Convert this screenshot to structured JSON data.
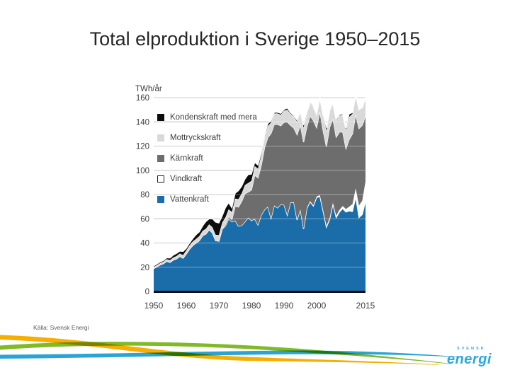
{
  "slide": {
    "title": "Total elproduktion i Sverige 1950–2015",
    "source": "Källa: Svensk Energi"
  },
  "chart_data": {
    "type": "area",
    "stacked": true,
    "title": "Total elproduktion i Sverige 1950–2015",
    "ylabel": "TWh/år",
    "xlabel": "",
    "grid": true,
    "legend_position": "upper-left-inside",
    "y_axis": {
      "min": 0,
      "max": 160,
      "ticks": [
        0,
        20,
        40,
        60,
        80,
        100,
        120,
        140,
        160
      ]
    },
    "x_axis": {
      "min": 1950,
      "max": 2015,
      "tick_labels": [
        1950,
        1960,
        1970,
        1980,
        1990,
        2000,
        2015
      ]
    },
    "colors": {
      "gridline": "#a8a8a8",
      "axis_line": "#0b0b14",
      "area_edge": "#ffffff",
      "tick_text": "#3e3e3d"
    },
    "years": [
      1950,
      1951,
      1952,
      1953,
      1954,
      1955,
      1956,
      1957,
      1958,
      1959,
      1960,
      1961,
      1962,
      1963,
      1964,
      1965,
      1966,
      1967,
      1968,
      1969,
      1970,
      1971,
      1972,
      1973,
      1974,
      1975,
      1976,
      1977,
      1978,
      1979,
      1980,
      1981,
      1982,
      1983,
      1984,
      1985,
      1986,
      1987,
      1988,
      1989,
      1990,
      1991,
      1992,
      1993,
      1994,
      1995,
      1996,
      1997,
      1998,
      1999,
      2000,
      2001,
      2002,
      2003,
      2004,
      2005,
      2006,
      2007,
      2008,
      2009,
      2010,
      2011,
      2012,
      2013,
      2014,
      2015
    ],
    "series": [
      {
        "id": "vattenkraft",
        "name": "Vattenkraft",
        "color": "#1a6da8",
        "outline": false,
        "values": [
          19,
          20.5,
          22,
          23,
          25,
          24,
          26,
          27,
          29,
          27.5,
          31,
          35,
          38,
          40,
          42,
          46,
          47.5,
          51,
          48.5,
          42,
          41.5,
          51.5,
          54,
          60,
          57.5,
          58.5,
          54,
          54.5,
          57.5,
          61,
          58.5,
          60,
          55,
          63,
          67.5,
          70,
          60.5,
          71,
          69,
          72,
          71.5,
          63,
          73.5,
          73.5,
          59,
          67.5,
          51.5,
          68.5,
          74,
          70.5,
          77.5,
          78.5,
          66,
          53,
          59.5,
          72,
          61,
          65.5,
          68.5,
          65.5,
          66.5,
          66,
          78,
          61,
          63.5,
          74.5
        ]
      },
      {
        "id": "vindkraft",
        "name": "Vindkraft",
        "color": "#ffffff",
        "outline": true,
        "values": [
          0,
          0,
          0,
          0,
          0,
          0,
          0,
          0,
          0,
          0,
          0,
          0,
          0,
          0,
          0,
          0,
          0,
          0,
          0,
          0,
          0,
          0,
          0,
          0,
          0,
          0,
          0,
          0,
          0,
          0,
          0,
          0,
          0,
          0,
          0,
          0,
          0,
          0,
          0,
          0,
          0,
          0.1,
          0.1,
          0.1,
          0.2,
          0.2,
          0.3,
          0.4,
          0.5,
          0.6,
          0.9,
          1,
          1,
          1.1,
          1.1,
          1.2,
          1.4,
          1.8,
          2,
          2.5,
          3.5,
          6.1,
          7.2,
          9.9,
          11.5,
          16.3
        ]
      },
      {
        "id": "karnkraft",
        "name": "Kärnkraft",
        "color": "#6d6d6d",
        "outline": false,
        "values": [
          0,
          0,
          0,
          0,
          0,
          0,
          0,
          0,
          0,
          0,
          0,
          0,
          0,
          0,
          0,
          0,
          0,
          0,
          0,
          0,
          0,
          0,
          1.5,
          2,
          2,
          11.9,
          15.7,
          19.9,
          23.3,
          21,
          25.3,
          36,
          38.8,
          41,
          50.9,
          57,
          69.9,
          66.9,
          68.9,
          64.8,
          68.2,
          76.8,
          63.5,
          61.4,
          70.2,
          69.9,
          71.4,
          67,
          70.5,
          70.1,
          56.8,
          69.2,
          65.6,
          65.5,
          75,
          69.5,
          65,
          64.3,
          61.3,
          50,
          55.6,
          58,
          61.2,
          63.6,
          62.2,
          54.3
        ]
      },
      {
        "id": "mottryckskraft",
        "name": "Mottryckskraft",
        "color": "#d9d9d9",
        "outline": false,
        "values": [
          1.2,
          1.3,
          1.4,
          1.5,
          1.6,
          1.8,
          2,
          2.2,
          2.3,
          2.5,
          2.8,
          3,
          3.2,
          3.4,
          3.7,
          4,
          4.2,
          4.4,
          4.6,
          4.8,
          5,
          5.2,
          5.5,
          5.8,
          6,
          6.2,
          6.5,
          6.5,
          7,
          7.5,
          7.5,
          7.5,
          7.5,
          8,
          8.5,
          9.5,
          9,
          9,
          9,
          9,
          9.5,
          10,
          9.5,
          9.5,
          10.5,
          10.5,
          12,
          10.5,
          11,
          10.5,
          10.5,
          11,
          12,
          13,
          13,
          12.5,
          13.5,
          13.5,
          14,
          15.5,
          18.5,
          16.5,
          15.5,
          15,
          14,
          14.5
        ]
      },
      {
        "id": "kondenskraft",
        "name": "Kondenskraft med mera",
        "color": "#0d0d0d",
        "outline": false,
        "values": [
          0.8,
          0.9,
          1,
          1,
          1.2,
          1.8,
          2,
          2.2,
          2,
          3,
          1.8,
          2,
          2.5,
          3.5,
          3.5,
          4,
          6,
          4.5,
          7,
          10.5,
          10,
          5.5,
          8,
          5.5,
          3.5,
          4.5,
          7,
          6,
          5,
          7,
          5.5,
          3,
          3,
          2.5,
          1.5,
          2,
          1.5,
          1,
          1,
          1.2,
          1,
          1.5,
          1,
          0.8,
          1.5,
          1,
          2,
          1.5,
          0.8,
          0.8,
          0.8,
          0.8,
          1.5,
          2.5,
          1,
          0.8,
          1,
          0.8,
          0.8,
          1.5,
          2.5,
          1,
          0.5,
          0.5,
          0.5,
          0.5
        ]
      }
    ]
  },
  "footer": {
    "waves": {
      "green": "#80ba27",
      "yellow": "#f5af00",
      "blue": "#2aa4d5"
    },
    "logo": {
      "top": "SVENSK",
      "main": "energi",
      "color": "#29a9e0"
    }
  }
}
